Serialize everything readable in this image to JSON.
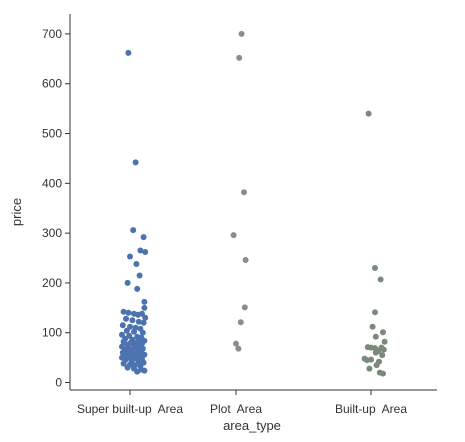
{
  "chart_data": {
    "type": "scatter",
    "subtype": "strip",
    "xlabel": "area_type",
    "ylabel": "price",
    "ylim": [
      -15,
      740
    ],
    "yticks": [
      0,
      100,
      200,
      300,
      400,
      500,
      600,
      700
    ],
    "grid": false,
    "legend": "none",
    "categories": [
      "Super built-up  Area",
      "Plot  Area",
      "Built-up  Area"
    ],
    "colors": [
      "#4c72b0",
      "#8c8c8c",
      "#7a8a7a"
    ],
    "series": [
      {
        "category": "Super built-up  Area",
        "points": [
          [
            -0.02,
            662
          ],
          [
            0.07,
            442
          ],
          [
            0.04,
            306
          ],
          [
            0.17,
            292
          ],
          [
            0.13,
            265
          ],
          [
            0.19,
            262
          ],
          [
            0.0,
            253
          ],
          [
            0.08,
            238
          ],
          [
            0.12,
            215
          ],
          [
            -0.03,
            200
          ],
          [
            0.09,
            188
          ],
          [
            0.18,
            162
          ],
          [
            0.18,
            150
          ],
          [
            -0.08,
            142
          ],
          [
            -0.02,
            140
          ],
          [
            0.05,
            138
          ],
          [
            0.1,
            136
          ],
          [
            0.15,
            138
          ],
          [
            0.19,
            130
          ],
          [
            -0.05,
            128
          ],
          [
            0.03,
            125
          ],
          [
            0.11,
            122
          ],
          [
            0.17,
            120
          ],
          [
            -0.09,
            115
          ],
          [
            0.0,
            112
          ],
          [
            0.07,
            110
          ],
          [
            0.13,
            108
          ],
          [
            -0.04,
            104
          ],
          [
            0.05,
            102
          ],
          [
            0.16,
            100
          ],
          [
            -0.1,
            96
          ],
          [
            -0.01,
            94
          ],
          [
            0.09,
            92
          ],
          [
            0.14,
            90
          ],
          [
            -0.06,
            88
          ],
          [
            0.03,
            86
          ],
          [
            0.11,
            85
          ],
          [
            0.18,
            84
          ],
          [
            -0.08,
            82
          ],
          [
            0.01,
            80
          ],
          [
            0.07,
            79
          ],
          [
            0.15,
            78
          ],
          [
            -0.03,
            76
          ],
          [
            0.05,
            75
          ],
          [
            0.12,
            74
          ],
          [
            -0.1,
            72
          ],
          [
            -0.02,
            70
          ],
          [
            0.08,
            70
          ],
          [
            0.16,
            68
          ],
          [
            -0.06,
            66
          ],
          [
            0.02,
            65
          ],
          [
            0.1,
            64
          ],
          [
            0.14,
            62
          ],
          [
            -0.09,
            60
          ],
          [
            0.0,
            60
          ],
          [
            0.06,
            58
          ],
          [
            0.12,
            57
          ],
          [
            0.18,
            56
          ],
          [
            -0.04,
            55
          ],
          [
            0.04,
            54
          ],
          [
            0.09,
            52
          ],
          [
            -0.1,
            50
          ],
          [
            -0.01,
            50
          ],
          [
            0.07,
            48
          ],
          [
            0.15,
            47
          ],
          [
            -0.06,
            45
          ],
          [
            0.02,
            44
          ],
          [
            0.11,
            42
          ],
          [
            0.17,
            40
          ],
          [
            -0.08,
            38
          ],
          [
            0.0,
            36
          ],
          [
            0.06,
            35
          ],
          [
            0.13,
            33
          ],
          [
            -0.03,
            30
          ],
          [
            0.05,
            28
          ],
          [
            0.14,
            26
          ],
          [
            0.18,
            24
          ],
          [
            0.09,
            22
          ]
        ]
      },
      {
        "category": "Plot  Area",
        "points": [
          [
            0.07,
            700
          ],
          [
            0.04,
            652
          ],
          [
            0.1,
            382
          ],
          [
            -0.03,
            296
          ],
          [
            0.12,
            246
          ],
          [
            0.11,
            151
          ],
          [
            0.06,
            121
          ],
          [
            0.0,
            78
          ],
          [
            0.03,
            68
          ]
        ]
      },
      {
        "category": "Built-up  Area",
        "points": [
          [
            -0.03,
            540
          ],
          [
            0.05,
            230
          ],
          [
            0.12,
            207
          ],
          [
            0.05,
            141
          ],
          [
            0.02,
            112
          ],
          [
            0.15,
            101
          ],
          [
            0.06,
            92
          ],
          [
            0.17,
            82
          ],
          [
            -0.04,
            71
          ],
          [
            0.0,
            70
          ],
          [
            0.05,
            69
          ],
          [
            0.13,
            70
          ],
          [
            0.16,
            66
          ],
          [
            0.09,
            63
          ],
          [
            0.06,
            60
          ],
          [
            0.14,
            55
          ],
          [
            -0.08,
            48
          ],
          [
            0.0,
            46
          ],
          [
            -0.05,
            45
          ],
          [
            0.1,
            42
          ],
          [
            0.07,
            35
          ],
          [
            -0.02,
            28
          ],
          [
            0.11,
            20
          ],
          [
            0.15,
            18
          ]
        ]
      }
    ]
  }
}
